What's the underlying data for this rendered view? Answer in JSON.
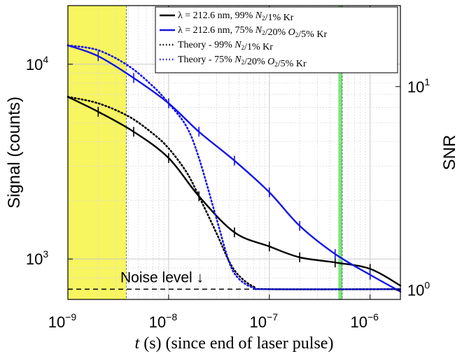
{
  "chart_data": {
    "type": "line",
    "xlabel": "t (s) (since end of laser pulse)",
    "xlabel_italic": "t",
    "xlabel_rest": " (s) (since end of laser pulse)",
    "ylabel": "Signal (counts)",
    "ylabel_right": "SNR",
    "x_scale": "log",
    "y_scale": "log",
    "xlim": [
      1e-09,
      2e-06
    ],
    "ylim": [
      620,
      20000
    ],
    "y_right_lim": [
      0.9,
      25
    ],
    "grid": true,
    "x_ticks": [
      {
        "value": 1e-09,
        "base": "10",
        "exp": "−9"
      },
      {
        "value": 1e-08,
        "base": "10",
        "exp": "−8"
      },
      {
        "value": 1e-07,
        "base": "10",
        "exp": "−7"
      },
      {
        "value": 1e-06,
        "base": "10",
        "exp": "−6"
      }
    ],
    "y_ticks_left": [
      {
        "value": 1000,
        "base": "10",
        "exp": "3"
      },
      {
        "value": 10000,
        "base": "10",
        "exp": "4"
      }
    ],
    "y_ticks_right": [
      {
        "value": 1,
        "base": "10",
        "exp": "0"
      },
      {
        "value": 10,
        "base": "10",
        "exp": "1"
      }
    ],
    "shaded_regions": [
      {
        "x0": 1e-09,
        "x1": 3.8e-09,
        "color": "#f7f560"
      },
      {
        "x0": 4.85e-07,
        "x1": 5.3e-07,
        "color": "#6fe36f"
      }
    ],
    "noise_level": {
      "label": "Noise level ↓",
      "y": 700
    },
    "legend_position": "top-right",
    "series": [
      {
        "name": "λ = 212.6 nm, 99% N2/1% Kr",
        "legend": {
          "pre": "λ = 212.6 nm, 99% ",
          "parts": [
            [
              "N",
              "2"
            ],
            [
              "/1% Kr",
              ""
            ]
          ]
        },
        "color": "#000000",
        "style": "solid",
        "x": [
          1e-09,
          2e-09,
          4.5e-09,
          1e-08,
          2e-08,
          4.5e-08,
          1e-07,
          2e-07,
          4.5e-07,
          1e-06,
          2e-06
        ],
        "y": [
          6800,
          5700,
          4500,
          3300,
          2100,
          1370,
          1160,
          1020,
          960,
          890,
          730
        ],
        "error_bars": true
      },
      {
        "name": "λ = 212.6 nm, 75% N2/20% O2/5% Kr",
        "legend": {
          "pre": "λ = 212.6 nm, 75% ",
          "parts": [
            [
              "N",
              "2"
            ],
            [
              "/20% ",
              ""
            ],
            [
              "O",
              "2"
            ],
            [
              "/5% Kr",
              ""
            ]
          ]
        },
        "color": "#1414e6",
        "style": "solid",
        "x": [
          1e-09,
          2e-09,
          4.5e-09,
          1e-08,
          2e-08,
          4.5e-08,
          1e-07,
          2e-07,
          4.5e-07,
          1e-06,
          2e-06
        ],
        "y": [
          12500,
          11000,
          8500,
          6300,
          4500,
          3200,
          2200,
          1480,
          1060,
          830,
          680
        ],
        "error_bars": true
      },
      {
        "name": "Theory - 99% N2/1% Kr",
        "legend": {
          "pre": "Theory - 99% ",
          "parts": [
            [
              "N",
              "2"
            ],
            [
              "/1% Kr",
              ""
            ]
          ]
        },
        "color": "#000000",
        "style": "dotted",
        "x": [
          1e-09,
          2e-09,
          4e-09,
          7e-09,
          1e-08,
          1.5e-08,
          2e-08,
          3e-08,
          4e-08,
          5e-08,
          7e-08,
          1e-07,
          2e-06
        ],
        "y": [
          6800,
          6300,
          5400,
          4400,
          3700,
          2800,
          2100,
          1350,
          970,
          820,
          720,
          700,
          700
        ],
        "error_bars": false
      },
      {
        "name": "Theory - 75% N2/20% O2/5% Kr",
        "legend": {
          "pre": "Theory - 75% ",
          "parts": [
            [
              "N",
              "2"
            ],
            [
              "/20% ",
              ""
            ],
            [
              "O",
              "2"
            ],
            [
              "/5% Kr",
              ""
            ]
          ]
        },
        "color": "#1414e6",
        "style": "dotted",
        "x": [
          1e-09,
          2e-09,
          4e-09,
          7e-09,
          1e-08,
          1.5e-08,
          2e-08,
          3e-08,
          4e-08,
          5e-08,
          7e-08,
          1e-07,
          2e-06
        ],
        "y": [
          12500,
          11800,
          9800,
          7700,
          6300,
          4800,
          3300,
          1600,
          960,
          790,
          710,
          700,
          700
        ],
        "error_bars": false
      }
    ]
  }
}
